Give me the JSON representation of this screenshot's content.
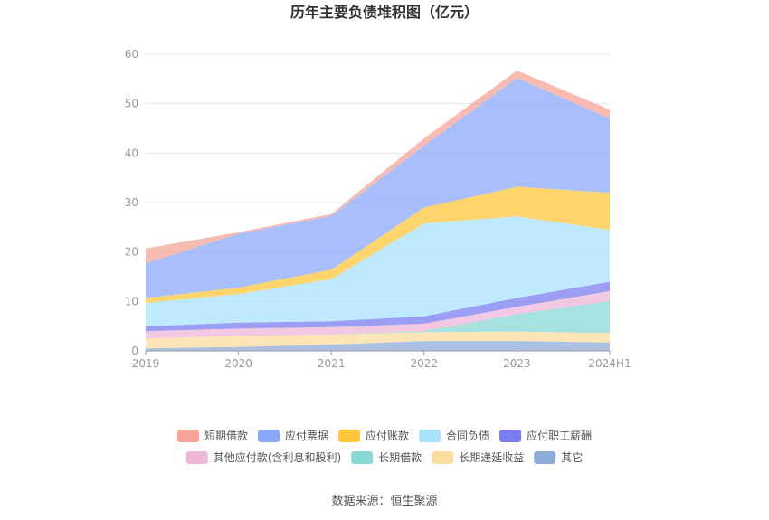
{
  "chart_data": {
    "type": "area",
    "stacked": true,
    "title": "历年主要负债堆积图（亿元）",
    "source": "数据来源：恒生聚源",
    "x": [
      "2019",
      "2020",
      "2021",
      "2022",
      "2023",
      "2024H1"
    ],
    "ylim": [
      0,
      60
    ],
    "yticks": [
      "0",
      "10",
      "20",
      "30",
      "40",
      "50",
      "60"
    ],
    "grid": true,
    "legend_position": "bottom",
    "series": [
      {
        "name": "其它",
        "color": "#8eacd9",
        "values": [
          0.5,
          0.8,
          1.3,
          2.0,
          2.0,
          1.7
        ]
      },
      {
        "name": "长期递延收益",
        "color": "#fcdca0",
        "values": [
          2.0,
          2.2,
          2.0,
          1.8,
          1.9,
          1.9
        ]
      },
      {
        "name": "长期借款",
        "color": "#88d8d6",
        "values": [
          0.0,
          0.0,
          0.0,
          0.2,
          3.5,
          6.5
        ]
      },
      {
        "name": "其他应付款(含利息和股利)",
        "color": "#edb6d8",
        "values": [
          1.5,
          1.5,
          1.5,
          1.5,
          1.5,
          2.0
        ]
      },
      {
        "name": "应付职工薪酬",
        "color": "#7b7cf0",
        "values": [
          1.0,
          1.2,
          1.2,
          1.5,
          1.8,
          1.9
        ]
      },
      {
        "name": "合同负债",
        "color": "#a9e2fb",
        "values": [
          4.7,
          5.8,
          8.5,
          18.8,
          16.5,
          10.5
        ]
      },
      {
        "name": "应付账款",
        "color": "#fec73c",
        "values": [
          1.0,
          1.3,
          1.9,
          3.2,
          6.0,
          7.5
        ]
      },
      {
        "name": "应付票据",
        "color": "#8ba9fb",
        "values": [
          7.0,
          10.9,
          10.9,
          12.5,
          22.0,
          15.0
        ]
      },
      {
        "name": "短期借款",
        "color": "#f6a497",
        "values": [
          3.0,
          0.3,
          0.4,
          1.5,
          1.5,
          1.8
        ]
      }
    ],
    "legend_order": [
      "短期借款",
      "应付票据",
      "应付账款",
      "合同负债",
      "应付职工薪酬",
      "其他应付款(含利息和股利)",
      "长期借款",
      "长期递延收益",
      "其它"
    ]
  }
}
